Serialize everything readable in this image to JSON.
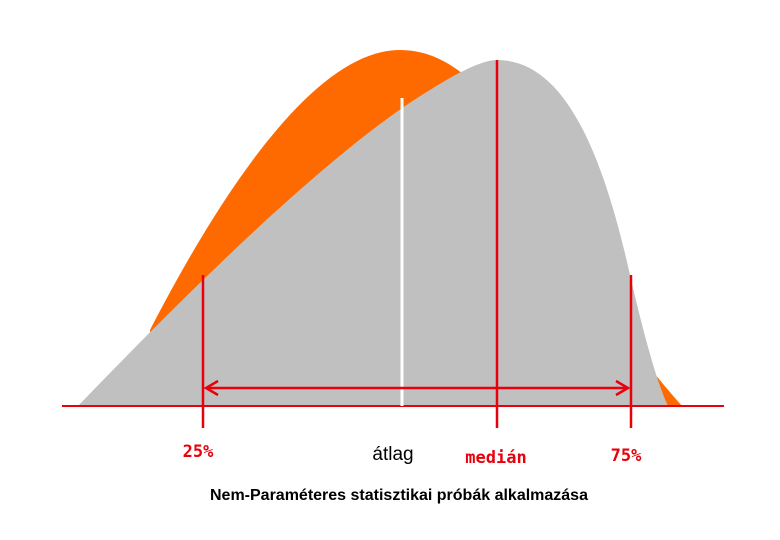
{
  "labels": {
    "q25": "25%",
    "mean": "átlag",
    "median": "medián",
    "q75": "75%"
  },
  "caption": "Nem-Paraméteres statisztikai próbák alkalmazása",
  "colors": {
    "orange_curve": "#ff6a00",
    "gray_curve": "#c0c0c0",
    "marker_red": "#e8000b",
    "mean_line": "#ffffff",
    "label_black": "#000000"
  }
}
